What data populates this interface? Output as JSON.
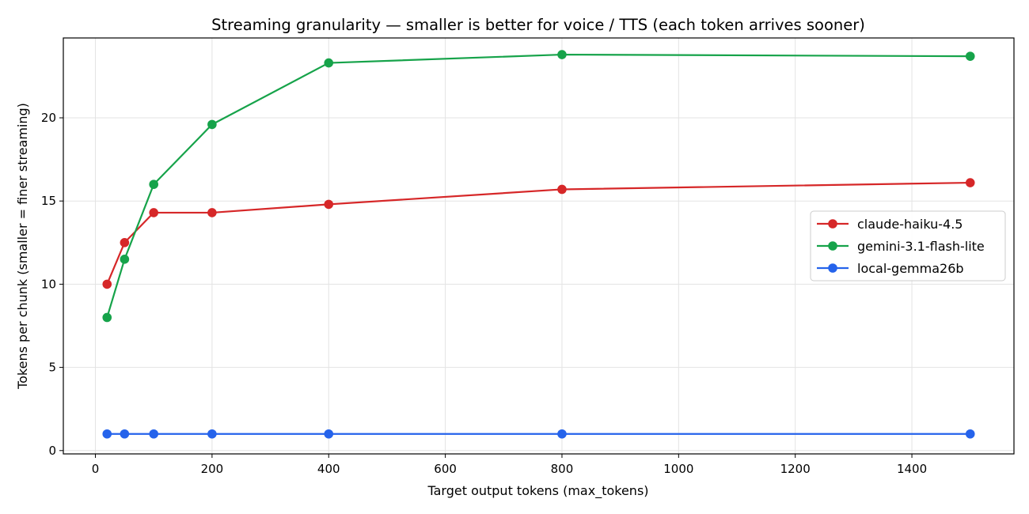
{
  "chart_data": {
    "type": "line",
    "title": "Streaming granularity — smaller is better for voice / TTS (each token arrives sooner)",
    "xlabel": "Target output tokens (max_tokens)",
    "ylabel": "Tokens per chunk  (smaller = finer streaming)",
    "xlim": [
      -55,
      1575
    ],
    "ylim": [
      -0.2,
      24.8
    ],
    "xticks": [
      0,
      200,
      400,
      600,
      800,
      1000,
      1200,
      1400
    ],
    "yticks": [
      0,
      5,
      10,
      15,
      20
    ],
    "grid": true,
    "legend_position": "center-right",
    "x": [
      20,
      50,
      100,
      200,
      400,
      800,
      1500
    ],
    "series": [
      {
        "name": "claude-haiku-4.5",
        "color": "#d62728",
        "values": [
          10.0,
          12.5,
          14.3,
          14.3,
          14.8,
          15.7,
          16.1
        ]
      },
      {
        "name": "gemini-3.1-flash-lite",
        "color": "#16a34a",
        "values": [
          8.0,
          11.5,
          16.0,
          19.6,
          23.3,
          23.8,
          23.7
        ]
      },
      {
        "name": "local-gemma26b",
        "color": "#2563eb",
        "values": [
          1.0,
          1.0,
          1.0,
          1.0,
          1.0,
          1.0,
          1.0
        ]
      }
    ]
  }
}
